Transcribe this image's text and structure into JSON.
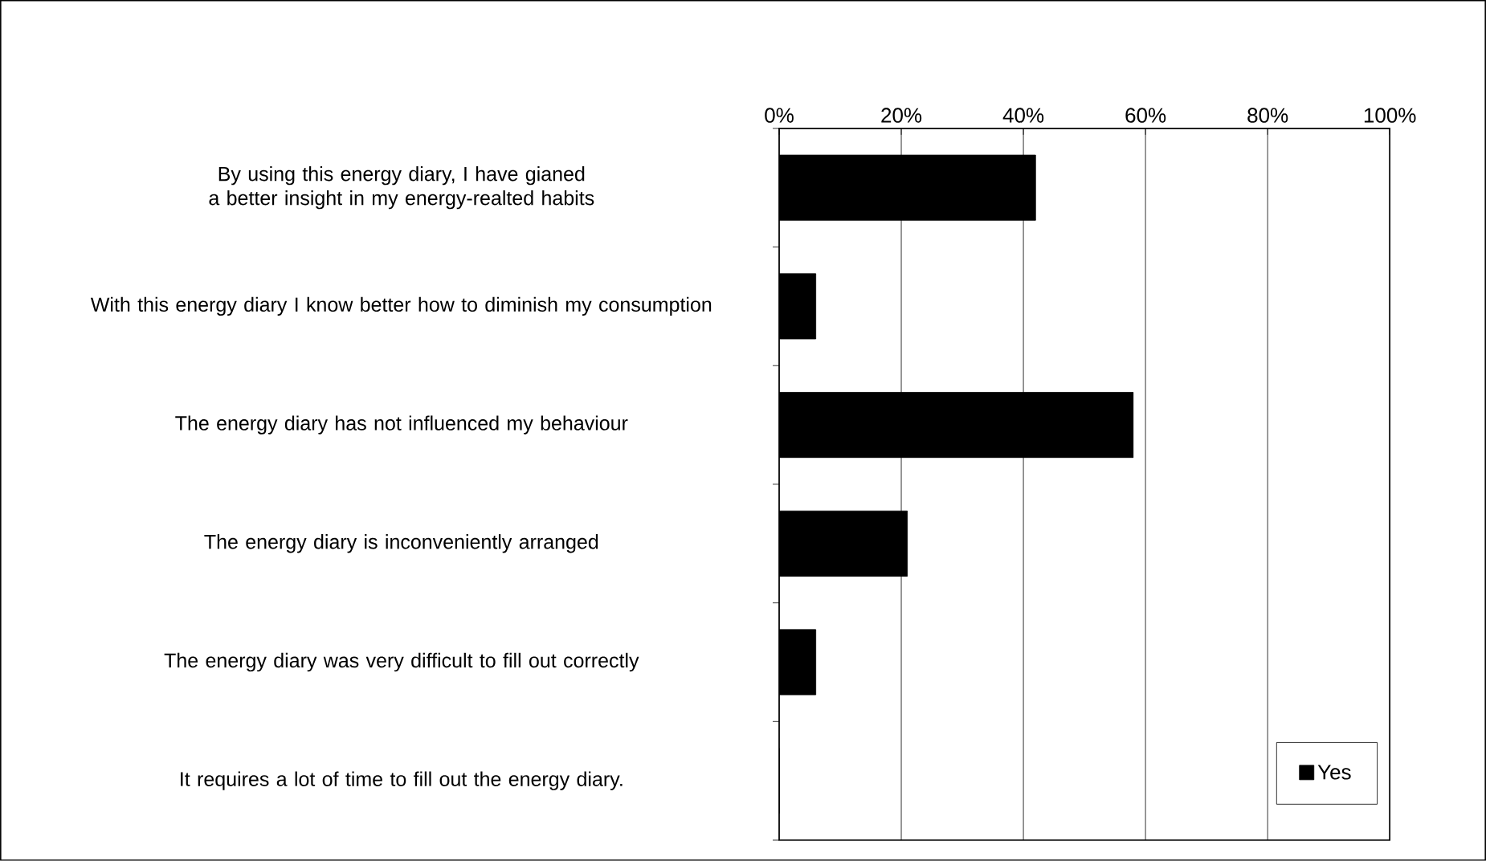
{
  "chart_data": {
    "type": "bar",
    "orientation": "horizontal",
    "categories": [
      "By using this energy diary, I have gianed a better insight in my energy-realted habits",
      "With this energy diary I know better how to diminish my consumption",
      "The energy diary has not influenced my behaviour",
      "The energy diary is inconveniently arranged",
      "The energy diary was very difficult to fill out correctly",
      "It requires a lot of time to fill out the energy diary."
    ],
    "series": [
      {
        "name": "Yes",
        "color": "#000000",
        "values": [
          42,
          6,
          58,
          21,
          6,
          0
        ]
      }
    ],
    "xlim": [
      0,
      100
    ],
    "xticks": [
      {
        "value": 0,
        "label": "0%"
      },
      {
        "value": 20,
        "label": "20%"
      },
      {
        "value": 40,
        "label": "40%"
      },
      {
        "value": 60,
        "label": "60%"
      },
      {
        "value": 80,
        "label": "80%"
      },
      {
        "value": 100,
        "label": "100%"
      }
    ],
    "grid": "x",
    "legend": "bottom right"
  }
}
